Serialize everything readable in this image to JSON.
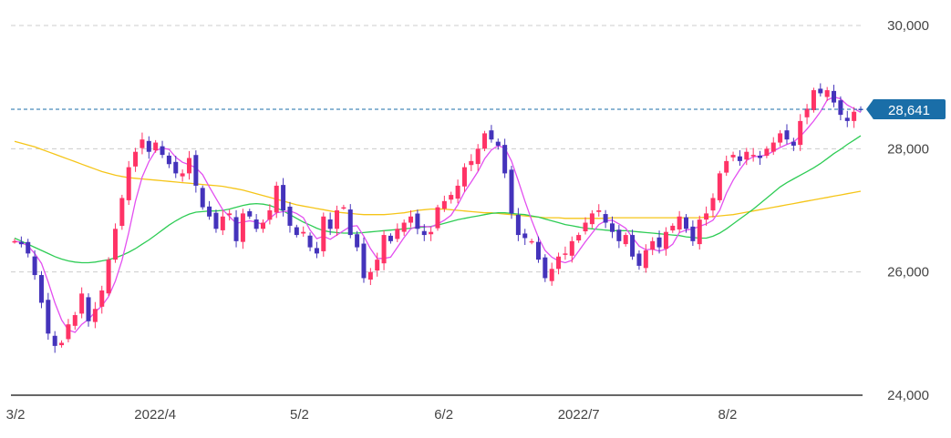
{
  "chart_data": {
    "type": "candlestick",
    "title": "",
    "ylim": [
      24000,
      30000
    ],
    "y_ticks": [
      "30,000",
      "28,000",
      "26,000",
      "24,000"
    ],
    "y_tick_values": [
      30000,
      28000,
      26000,
      24000
    ],
    "x_tick_labels": [
      "3/2",
      "2022/4",
      "5/2",
      "6/2",
      "2022/7",
      "8/2"
    ],
    "x_tick_dates": [
      "2022-03-02",
      "2022-04-01",
      "2022-05-02",
      "2022-06-02",
      "2022-07-01",
      "2022-08-02"
    ],
    "date_range": [
      "2022-03-01",
      "2022-08-31"
    ],
    "last_price": 28641,
    "last_price_label": "28,641",
    "colors": {
      "up": "#ff3366",
      "down": "#4433bb",
      "ma_short": "#e34ff0",
      "ma_mid": "#2ecc55",
      "ma_long": "#f5c518",
      "price_line": "#1a6ea8",
      "price_tag": "#1a6ea8",
      "grid": "#cccccc",
      "axis": "#333333",
      "text": "#444444"
    },
    "close_series": [
      26500,
      26450,
      26300,
      25950,
      25500,
      25000,
      24800,
      24850,
      25150,
      25300,
      25650,
      25200,
      25400,
      25700,
      26200,
      26700,
      27200,
      27700,
      27950,
      28150,
      27950,
      28100,
      27900,
      27750,
      27600,
      27600,
      27850,
      27400,
      27050,
      26900,
      26700,
      26900,
      26950,
      26500,
      26950,
      26900,
      26700,
      26800,
      27000,
      27400,
      27000,
      26750,
      26600,
      26650,
      26400,
      26300,
      26900,
      26700,
      27000,
      27050,
      26600,
      26400,
      25900,
      26000,
      26200,
      26600,
      26500,
      26700,
      26800,
      26900,
      26700,
      26600,
      26650,
      27050,
      27150,
      27250,
      27400,
      27700,
      27800,
      28000,
      28250,
      28150,
      28050,
      27600,
      26950,
      26600,
      26550,
      26500,
      26200,
      25900,
      26050,
      26250,
      26300,
      26500,
      26600,
      26800,
      26950,
      27000,
      26800,
      26650,
      26500,
      26600,
      26250,
      26100,
      26350,
      26500,
      26400,
      26650,
      26750,
      26900,
      26700,
      26500,
      26850,
      26950,
      27200,
      27600,
      27800,
      27900,
      27800,
      27950,
      27900,
      27850,
      28000,
      28100,
      28250,
      28150,
      28050,
      28450,
      28650,
      28950,
      28900,
      28950,
      28750,
      28550,
      28450,
      28600,
      28641
    ],
    "ma_short": [
      26500,
      26480,
      26420,
      26300,
      26140,
      25840,
      25500,
      25220,
      25060,
      25020,
      25150,
      25230,
      25350,
      25450,
      25600,
      25850,
      26190,
      26640,
      27150,
      27540,
      27790,
      27970,
      28010,
      27990,
      27860,
      27780,
      27740,
      27690,
      27580,
      27380,
      27190,
      27010,
      26900,
      26790,
      26810,
      26830,
      26810,
      26770,
      26870,
      26960,
      26980,
      26990,
      26950,
      26880,
      26680,
      26540,
      26580,
      26530,
      26600,
      26670,
      26740,
      26750,
      26580,
      26380,
      26220,
      26220,
      26240,
      26400,
      26560,
      26700,
      26740,
      26740,
      26730,
      26780,
      26840,
      26920,
      27090,
      27300,
      27460,
      27630,
      27840,
      27980,
      28050,
      28010,
      27800,
      27480,
      27150,
      26840,
      26560,
      26350,
      26240,
      26180,
      26150,
      26190,
      26340,
      26490,
      26630,
      26770,
      26830,
      26840,
      26780,
      26710,
      26560,
      26420,
      26360,
      26370,
      26340,
      26370,
      26450,
      26640,
      26680,
      26700,
      26740,
      26780,
      26840,
      27000,
      27280,
      27490,
      27660,
      27810,
      27870,
      27880,
      27900,
      27960,
      28020,
      28070,
      28110,
      28200,
      28320,
      28450,
      28600,
      28790,
      28840,
      28810,
      28710,
      28650,
      28590
    ],
    "ma_mid": [
      26550,
      26500,
      26450,
      26400,
      26350,
      26300,
      26250,
      26210,
      26180,
      26160,
      26150,
      26150,
      26160,
      26180,
      26200,
      26230,
      26270,
      26320,
      26380,
      26450,
      26520,
      26600,
      26680,
      26760,
      26830,
      26890,
      26940,
      26970,
      26980,
      26990,
      26990,
      27000,
      27020,
      27050,
      27080,
      27100,
      27110,
      27100,
      27080,
      27040,
      26990,
      26930,
      26870,
      26810,
      26760,
      26710,
      26670,
      26650,
      26640,
      26630,
      26630,
      26630,
      26640,
      26650,
      26660,
      26670,
      26680,
      26690,
      26700,
      26710,
      26720,
      26730,
      26740,
      26760,
      26790,
      26820,
      26850,
      26870,
      26890,
      26910,
      26930,
      26950,
      26960,
      26960,
      26950,
      26940,
      26930,
      26910,
      26890,
      26860,
      26830,
      26800,
      26770,
      26750,
      26730,
      26710,
      26700,
      26690,
      26680,
      26670,
      26670,
      26670,
      26660,
      26650,
      26640,
      26630,
      26620,
      26610,
      26600,
      26590,
      26570,
      26560,
      26550,
      26550,
      26580,
      26630,
      26700,
      26780,
      26860,
      26940,
      27020,
      27110,
      27200,
      27290,
      27380,
      27450,
      27510,
      27570,
      27630,
      27690,
      27760,
      27840,
      27920,
      27990,
      28070,
      28140,
      28210
    ],
    "ma_long": [
      28120,
      28090,
      28060,
      28030,
      27990,
      27950,
      27910,
      27870,
      27830,
      27790,
      27750,
      27710,
      27670,
      27630,
      27600,
      27570,
      27550,
      27530,
      27520,
      27510,
      27500,
      27490,
      27480,
      27470,
      27460,
      27450,
      27440,
      27430,
      27420,
      27410,
      27400,
      27390,
      27370,
      27350,
      27330,
      27300,
      27270,
      27240,
      27210,
      27180,
      27150,
      27120,
      27090,
      27070,
      27050,
      27030,
      27010,
      26990,
      26970,
      26960,
      26950,
      26940,
      26930,
      26930,
      26930,
      26930,
      26940,
      26950,
      26960,
      26980,
      27000,
      27010,
      27020,
      27020,
      27020,
      27010,
      27000,
      26990,
      26980,
      26970,
      26960,
      26960,
      26950,
      26940,
      26930,
      26920,
      26910,
      26900,
      26890,
      26880,
      26880,
      26880,
      26870,
      26870,
      26870,
      26870,
      26870,
      26870,
      26870,
      26880,
      26880,
      26880,
      26880,
      26880,
      26880,
      26880,
      26880,
      26880,
      26880,
      26880,
      26880,
      26880,
      26880,
      26890,
      26900,
      26910,
      26920,
      26930,
      26950,
      26970,
      26990,
      27010,
      27030,
      27050,
      27070,
      27090,
      27110,
      27130,
      27150,
      27170,
      27190,
      27210,
      27230,
      27250,
      27270,
      27290,
      27310
    ]
  }
}
